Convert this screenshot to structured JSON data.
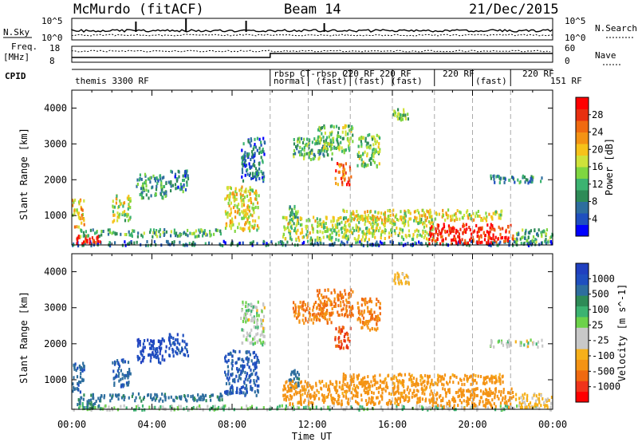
{
  "header": {
    "station": "McMurdo (fitACF)",
    "beam": "Beam 14",
    "date": "21/Dec/2015"
  },
  "strip_panels": {
    "nsky_label": "N.Sky",
    "nsearch_label": "N.Search",
    "nsky_ticks": [
      "10^5",
      "10^0"
    ],
    "nsearch_ticks": [
      "10^5",
      "10^0"
    ],
    "freq_label_line1": "Freq.",
    "freq_label_line2": "[MHz]",
    "freq_ticks": [
      "18",
      "8"
    ],
    "nave_label": "Nave",
    "nave_ticks": [
      "60",
      "0"
    ],
    "cpid_label": "CPID"
  },
  "cpid_labels": [
    {
      "text": "themis 3300 RF",
      "row": 2
    },
    {
      "text": "rbsp CT-",
      "row": 1
    },
    {
      "text": "normal",
      "row": 2
    },
    {
      "text": "rbsp CT",
      "row": 1
    },
    {
      "text": "(fast)",
      "row": 2
    },
    {
      "text": "220 RF",
      "row": 1
    },
    {
      "text": "(fast)",
      "row": 2
    },
    {
      "text": "220 RF",
      "row": 1
    },
    {
      "text": "(fast)",
      "row": 2
    },
    {
      "text": "220 RF",
      "row": 1
    },
    {
      "text": "(fast)",
      "row": 2
    },
    {
      "text": "220 RF",
      "row": 1
    },
    {
      "text": "151 RF",
      "row": 2
    }
  ],
  "chart_data": {
    "type": "heatmap",
    "x_axis": {
      "label": "Time UT",
      "ticks": [
        "00:00",
        "04:00",
        "08:00",
        "12:00",
        "16:00",
        "20:00",
        "00:00"
      ],
      "range_hours": [
        0,
        24
      ]
    },
    "y_axis": {
      "label": "Slant Range [km]",
      "ticks": [
        1000,
        2000,
        3000,
        4000
      ],
      "range_km": [
        180,
        4500
      ]
    },
    "panels": [
      {
        "name": "power",
        "colorbar_label": "Power [dB]",
        "colorbar_ticks": [
          "28",
          "24",
          "20",
          "16",
          "12",
          "8",
          "4"
        ],
        "colorbar_colors": [
          "#0000ff",
          "#1f4fbf",
          "#2e6e9e",
          "#2e8b57",
          "#3cb371",
          "#7fd640",
          "#cfe23a",
          "#f6c21a",
          "#f49314",
          "#f06a10",
          "#e83010",
          "#ff0000"
        ]
      },
      {
        "name": "velocity",
        "colorbar_label": "Velocity [m s^-1]",
        "colorbar_ticks": [
          "1000",
          "500",
          "100",
          "25",
          "-25",
          "-100",
          "-500",
          "-1000"
        ],
        "colorbar_colors": [
          "#ff0000",
          "#f0341a",
          "#f06a10",
          "#f49314",
          "#f6b01a",
          "#c8c8c8",
          "#c8c8c8",
          "#6cd24a",
          "#3cb371",
          "#2e8b57",
          "#2e6e9e",
          "#1f4fbf",
          "#2040c0"
        ]
      }
    ],
    "dashed_cpid_changes_hours": [
      9.9,
      11.8,
      13.9,
      16.0,
      18.1,
      20.0,
      21.9
    ],
    "scatter_regions": [
      {
        "t0": 0.0,
        "t1": 24.0,
        "r0": 200,
        "r1": 320,
        "power": 8,
        "vel": 30
      },
      {
        "t0": 0.2,
        "t1": 1.4,
        "r0": 250,
        "r1": 480,
        "power": 28,
        "vel": 150
      },
      {
        "t0": 0.0,
        "t1": 0.6,
        "r0": 700,
        "r1": 1500,
        "power": 20,
        "vel": 250
      },
      {
        "t0": 0.3,
        "t1": 7.5,
        "r0": 450,
        "r1": 650,
        "power": 12,
        "vel": 200
      },
      {
        "t0": 2.0,
        "t1": 2.9,
        "r0": 850,
        "r1": 1600,
        "power": 16,
        "vel": 300
      },
      {
        "t0": 3.2,
        "t1": 4.7,
        "r0": 1500,
        "r1": 2200,
        "power": 11,
        "vel": 600
      },
      {
        "t0": 4.8,
        "t1": 5.8,
        "r0": 1700,
        "r1": 2300,
        "power": 9,
        "vel": 450
      },
      {
        "t0": 7.6,
        "t1": 9.3,
        "r0": 600,
        "r1": 1850,
        "power": 18,
        "vel": 350
      },
      {
        "t0": 8.4,
        "t1": 9.6,
        "r0": 2000,
        "r1": 3200,
        "power": 8,
        "vel": 10
      },
      {
        "t0": 10.8,
        "t1": 11.3,
        "r0": 800,
        "r1": 1300,
        "power": 12,
        "vel": 200
      },
      {
        "t0": 11.0,
        "t1": 13.0,
        "r0": 2600,
        "r1": 3200,
        "power": 12,
        "vel": -300
      },
      {
        "t0": 12.2,
        "t1": 14.0,
        "r0": 2800,
        "r1": 3550,
        "power": 14,
        "vel": -350
      },
      {
        "t0": 13.1,
        "t1": 13.9,
        "r0": 1900,
        "r1": 2500,
        "power": 24,
        "vel": -600
      },
      {
        "t0": 14.2,
        "t1": 15.4,
        "r0": 2400,
        "r1": 3300,
        "power": 14,
        "vel": -300
      },
      {
        "t0": 10.5,
        "t1": 18.0,
        "r0": 350,
        "r1": 1000,
        "power": 16,
        "vel": -150
      },
      {
        "t0": 13.5,
        "t1": 21.5,
        "r0": 900,
        "r1": 1200,
        "power": 18,
        "vel": -150
      },
      {
        "t0": 17.8,
        "t1": 22.0,
        "r0": 250,
        "r1": 800,
        "power": 28,
        "vel": -200
      },
      {
        "t0": 22.0,
        "t1": 24.0,
        "r0": 250,
        "r1": 650,
        "power": 12,
        "vel": -50
      },
      {
        "t0": 20.8,
        "t1": 23.5,
        "r0": 1950,
        "r1": 2150,
        "power": 10,
        "vel": 10
      },
      {
        "t0": 16.0,
        "t1": 16.8,
        "r0": 3700,
        "r1": 4000,
        "power": 14,
        "vel": -50
      }
    ]
  }
}
